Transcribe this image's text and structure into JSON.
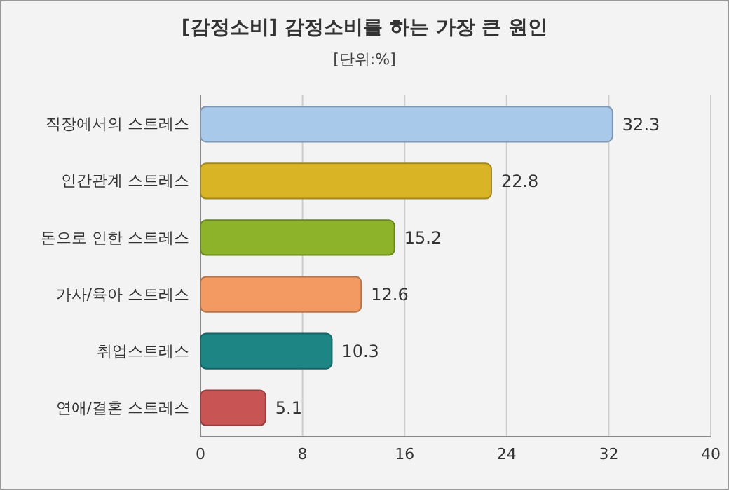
{
  "chart_data": {
    "type": "bar",
    "orientation": "horizontal",
    "title": "[감정소비] 감정소비를 하는 가장 큰 원인",
    "subtitle": "[단위:%]",
    "categories": [
      "직장에서의 스트레스",
      "인간관계 스트레스",
      "돈으로 인한 스트레스",
      "가사/육아 스트레스",
      "취업스트레스",
      "연애/결혼 스트레스"
    ],
    "values": [
      32.3,
      22.8,
      15.2,
      12.6,
      10.3,
      5.1
    ],
    "colors": [
      "#a9c9ea",
      "#d9b526",
      "#8db32a",
      "#f29a62",
      "#1e8585",
      "#c95454"
    ],
    "xlim": [
      0,
      40
    ],
    "xticks": [
      0,
      8,
      16,
      24,
      32,
      40
    ],
    "grid": "x",
    "data_labels": true
  }
}
